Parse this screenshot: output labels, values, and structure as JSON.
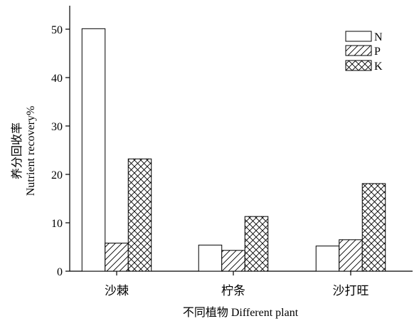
{
  "chart_data": {
    "type": "bar",
    "categories": [
      "沙棘",
      "柠条",
      "沙打旺"
    ],
    "series": [
      {
        "name": "N",
        "values": [
          50.1,
          5.4,
          5.2
        ],
        "pattern": "none"
      },
      {
        "name": "P",
        "values": [
          5.8,
          4.3,
          6.5
        ],
        "pattern": "diagonal"
      },
      {
        "name": "K",
        "values": [
          23.2,
          11.3,
          18.1
        ],
        "pattern": "crosshatch"
      }
    ],
    "xlabel": "不同植物 Different plant",
    "ylabel_cn": "养分回收率",
    "ylabel_en": "Nutrient recovery%",
    "ylim": [
      0,
      55
    ],
    "yticks": [
      0,
      10,
      20,
      30,
      40,
      50
    ],
    "legend_position": "top-right",
    "grid": false,
    "bar_fill_color": "#ffffff",
    "stroke_color": "#000000"
  }
}
